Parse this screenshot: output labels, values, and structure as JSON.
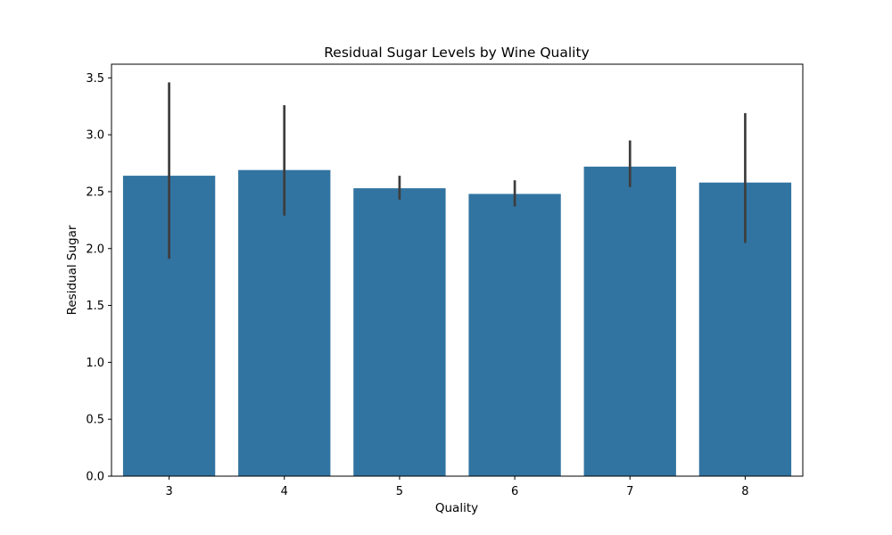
{
  "chart_data": {
    "type": "bar",
    "title": "Residual Sugar Levels by Wine Quality",
    "xlabel": "Quality",
    "ylabel": "Residual Sugar",
    "categories": [
      "3",
      "4",
      "5",
      "6",
      "7",
      "8"
    ],
    "values": [
      2.64,
      2.69,
      2.53,
      2.48,
      2.72,
      2.58
    ],
    "error_low": [
      1.91,
      2.29,
      2.43,
      2.37,
      2.54,
      2.05
    ],
    "error_high": [
      3.46,
      3.26,
      2.64,
      2.6,
      2.95,
      3.19
    ],
    "ylim": [
      0,
      3.62
    ],
    "yticks": [
      "0.0",
      "0.5",
      "1.0",
      "1.5",
      "2.0",
      "2.5",
      "3.0",
      "3.5"
    ],
    "grid": false,
    "colors": {
      "bar": "#3274a1",
      "error_bar": "#3d3d3d"
    }
  }
}
